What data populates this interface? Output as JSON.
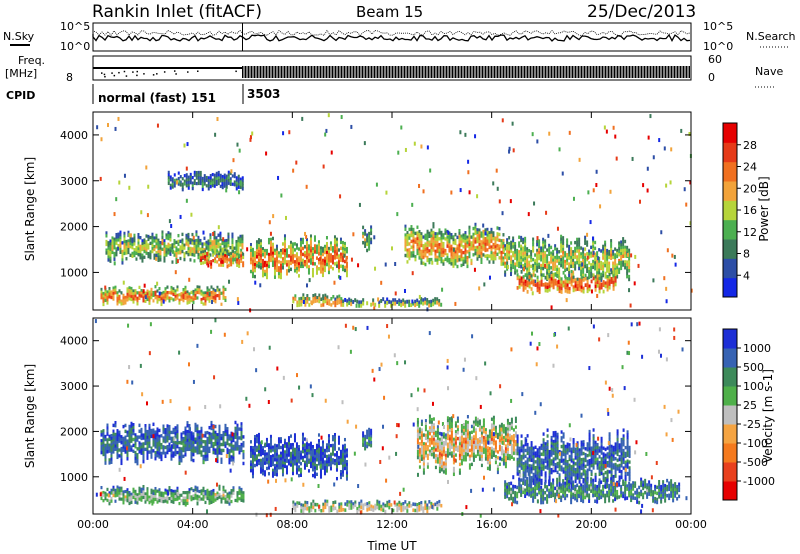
{
  "header": {
    "station": "Rankin Inlet (fitACF)",
    "beam": "Beam 15",
    "date": "25/Dec/2013"
  },
  "noise_panel": {
    "left_label": "N.Sky",
    "right_label": "N.Search",
    "left_ticks": [
      "10^5",
      "10^0"
    ],
    "right_ticks": [
      "10^5",
      "10^0"
    ]
  },
  "freq_panel": {
    "left_label_line1": "Freq.",
    "left_label_line2": "[MHz]",
    "left_tick": "8",
    "right_label": "Nave",
    "right_ticks": [
      "60",
      "0"
    ]
  },
  "cpid": {
    "label": "CPID",
    "segments": [
      {
        "start_hour": 0,
        "end_hour": 6,
        "label": "normal (fast) 151"
      },
      {
        "start_hour": 6,
        "end_hour": 24,
        "label": "3503"
      }
    ]
  },
  "colors": {
    "power_scale": [
      "#1428e6",
      "#2d4ea6",
      "#3c7a5a",
      "#4caf50",
      "#b6d43a",
      "#f2a33a",
      "#f07020",
      "#e63a18",
      "#e60000"
    ],
    "velocity_scale": [
      "#1d2fd6",
      "#3763b3",
      "#3d8a5a",
      "#4fb04a",
      "#bfbfbf",
      "#f5a442",
      "#f57a1e",
      "#e8401d",
      "#e60000"
    ]
  },
  "chart_data": [
    {
      "type": "heatmap",
      "title": "Power",
      "xlabel": "Time UT",
      "ylabel": "Slant Range [km]",
      "xlim_hours": [
        0,
        24
      ],
      "ylim_km": [
        180,
        4500
      ],
      "x_ticks": [
        "00:00",
        "04:00",
        "08:00",
        "12:00",
        "16:00",
        "20:00",
        "00:00"
      ],
      "y_ticks": [
        "1000",
        "2000",
        "3000",
        "4000"
      ],
      "y_tick_values": [
        1000,
        2000,
        3000,
        4000
      ],
      "colorbar": {
        "label": "Power [dB]",
        "ticks": [
          "4",
          "8",
          "12",
          "16",
          "20",
          "24",
          "28"
        ],
        "range": [
          0,
          30
        ]
      },
      "bands": [
        {
          "start_hour": 0.5,
          "end_hour": 6.0,
          "center_km": 1550,
          "width_km": 500,
          "level": 0.55
        },
        {
          "start_hour": 4.3,
          "end_hour": 6.0,
          "center_km": 1300,
          "width_km": 300,
          "level": 0.9
        },
        {
          "start_hour": 6.3,
          "end_hour": 10.2,
          "center_km": 1350,
          "width_km": 650,
          "level": 0.8
        },
        {
          "start_hour": 10.8,
          "end_hour": 11.2,
          "center_km": 1750,
          "width_km": 400,
          "level": 0.5
        },
        {
          "start_hour": 12.5,
          "end_hour": 16.5,
          "center_km": 1600,
          "width_km": 700,
          "level": 0.75
        },
        {
          "start_hour": 16.5,
          "end_hour": 21.5,
          "center_km": 1300,
          "width_km": 700,
          "level": 0.6
        },
        {
          "start_hour": 17.0,
          "end_hour": 21.0,
          "center_km": 800,
          "width_km": 350,
          "level": 0.9
        },
        {
          "start_hour": 0.3,
          "end_hour": 5.3,
          "center_km": 500,
          "width_km": 300,
          "level": 0.85
        },
        {
          "start_hour": 8.0,
          "end_hour": 10.0,
          "center_km": 400,
          "width_km": 200,
          "level": 0.75
        },
        {
          "start_hour": 10.0,
          "end_hour": 14.0,
          "center_km": 350,
          "width_km": 150,
          "level": 0.5
        },
        {
          "start_hour": 3.0,
          "end_hour": 6.0,
          "center_km": 3000,
          "width_km": 300,
          "level": 0.3
        }
      ]
    },
    {
      "type": "heatmap",
      "title": "Velocity",
      "xlabel": "Time UT",
      "ylabel": "Slant Range [km]",
      "xlim_hours": [
        0,
        24
      ],
      "ylim_km": [
        180,
        4500
      ],
      "x_ticks": [
        "00:00",
        "04:00",
        "08:00",
        "12:00",
        "16:00",
        "20:00",
        "00:00"
      ],
      "y_ticks": [
        "1000",
        "2000",
        "3000",
        "4000"
      ],
      "y_tick_values": [
        1000,
        2000,
        3000,
        4000
      ],
      "colorbar": {
        "label": "Velocity [m s-1]",
        "ticks": [
          "1000",
          "500",
          "100",
          "25",
          "-25",
          "-100",
          "-500",
          "-1000"
        ]
      },
      "bands": [
        {
          "start_hour": 0.3,
          "end_hour": 6.0,
          "center_km": 1750,
          "width_km": 650,
          "level": 0.25
        },
        {
          "start_hour": 6.3,
          "end_hour": 10.2,
          "center_km": 1450,
          "width_km": 700,
          "level": 0.2
        },
        {
          "start_hour": 10.8,
          "end_hour": 11.2,
          "center_km": 1800,
          "width_km": 400,
          "level": 0.3
        },
        {
          "start_hour": 13.0,
          "end_hour": 17.0,
          "center_km": 1700,
          "width_km": 900,
          "level": 0.7
        },
        {
          "start_hour": 17.0,
          "end_hour": 21.5,
          "center_km": 1400,
          "width_km": 900,
          "level": 0.25
        },
        {
          "start_hour": 0.3,
          "end_hour": 6.0,
          "center_km": 600,
          "width_km": 300,
          "level": 0.5
        },
        {
          "start_hour": 16.5,
          "end_hour": 23.5,
          "center_km": 700,
          "width_km": 400,
          "level": 0.35
        },
        {
          "start_hour": 8.0,
          "end_hour": 14.0,
          "center_km": 350,
          "width_km": 200,
          "level": 0.65
        }
      ]
    }
  ]
}
